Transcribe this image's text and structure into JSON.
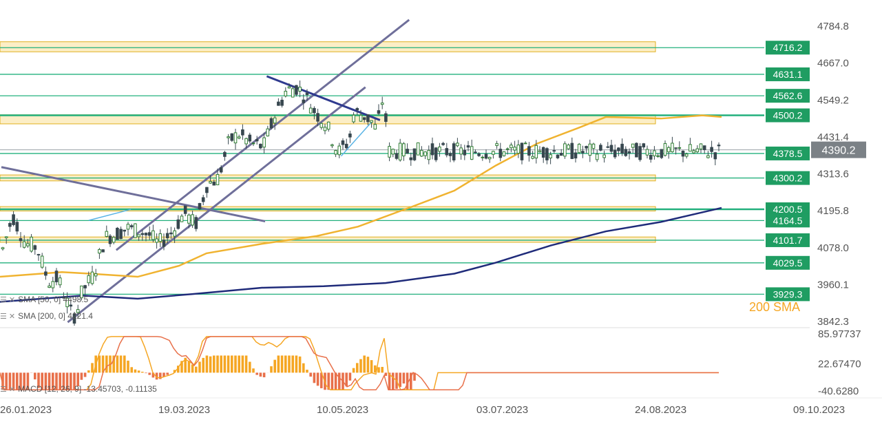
{
  "chart_data": [
    {
      "type": "candlestick",
      "name": "price",
      "y_ticks": [
        "4784.8",
        "4667.0",
        "4549.2",
        "4431.4",
        "4313.6",
        "4195.8",
        "4078.0",
        "3960.1",
        "3842.3"
      ],
      "ylim": [
        3842.3,
        4784.8
      ],
      "x_ticks": [
        "26.01.2023",
        "19.03.2023",
        "10.05.2023",
        "03.07.2023",
        "24.08.2023",
        "09.10.2023"
      ],
      "current_price": "4390.2",
      "levels": [
        "4716.2",
        "4631.1",
        "4562.6",
        "4500.2",
        "4378.5",
        "4300.2",
        "4200.5",
        "4164.5",
        "4101.7",
        "4029.5",
        "3929.3"
      ],
      "zones": [
        {
          "from": 4703,
          "to": 4735
        },
        {
          "from": 4473,
          "to": 4502
        },
        {
          "from": 4291,
          "to": 4310
        },
        {
          "from": 4195,
          "to": 4209
        },
        {
          "from": 4095,
          "to": 4112
        }
      ],
      "annotation": "200 SMA",
      "indicators": [
        {
          "label": "SMA [50, 0]",
          "value": "4498.5",
          "color": "#f0b330"
        },
        {
          "label": "SMA [200, 0]",
          "value": "4221.4",
          "color": "#1f2b7a"
        }
      ],
      "colors": {
        "up": "#2e7d32",
        "down": "#37474f",
        "level": "#22b07d",
        "zone": "#f5c842",
        "trend": "#6f6f9a",
        "current": "#7b8186"
      }
    },
    {
      "type": "macd",
      "label": "MACD [12, 26, 9]",
      "values": [
        "-13.45703",
        "-0.11135"
      ],
      "y_ticks": [
        "85.97737",
        "22.67470",
        "-40.6280"
      ],
      "ylim": [
        -40.628,
        85.97737
      ],
      "colors": {
        "pos": "#f5a623",
        "neg": "#e8704a",
        "macd": "#f5a623",
        "signal": "#e8704a"
      }
    }
  ]
}
